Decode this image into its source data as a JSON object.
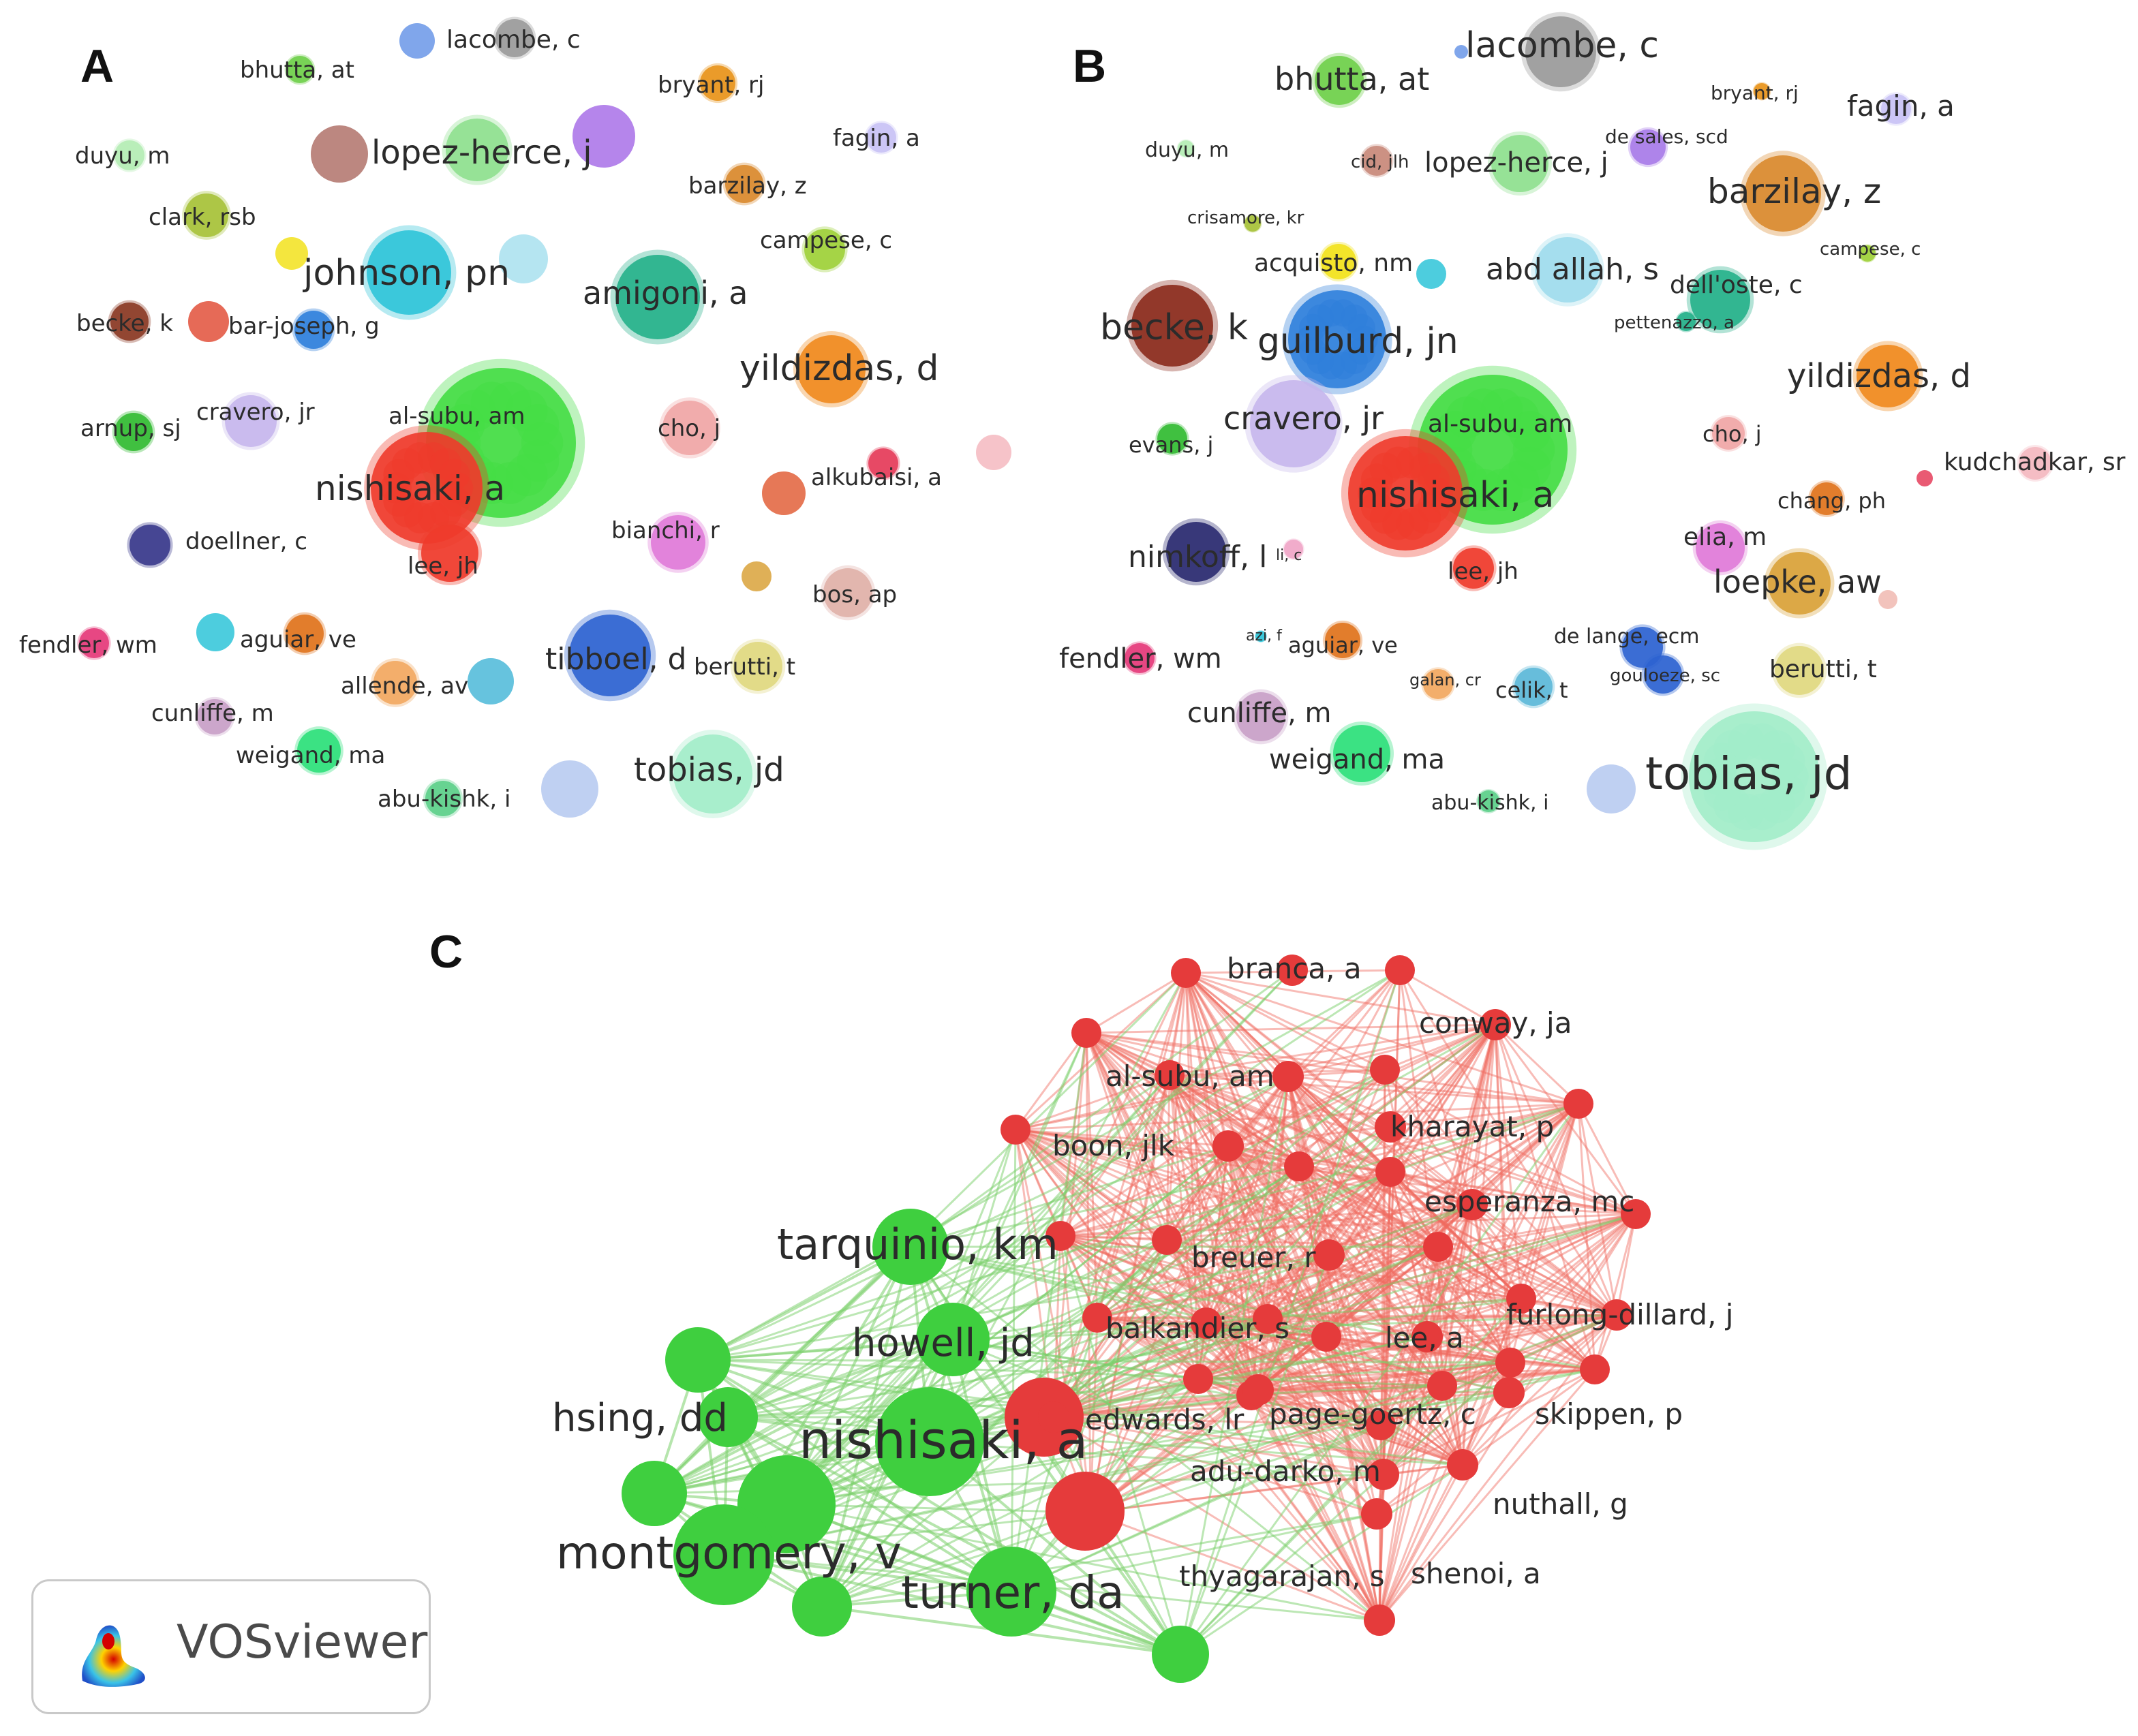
{
  "colors": {
    "panel_c_red": "#ef6a60",
    "panel_c_red_node": "#e53b3b",
    "panel_c_green": "#7ad06a",
    "panel_c_green_node": "#3fcf3f"
  },
  "panels": {
    "A": {
      "letter": "A",
      "nodes": [
        {
          "label": "lacombe, c",
          "color": "#9a9a9a"
        },
        {
          "label": "bhutta, at",
          "color": "#6fcf4a"
        },
        {
          "label": "bryant, rj",
          "color": "#e8941c"
        },
        {
          "label": "duyu, m",
          "color": "#b4ecb4"
        },
        {
          "label": "lopez-herce, j",
          "color": "#8fe08f"
        },
        {
          "label": "fagin, a",
          "color": "#c9c2f5"
        },
        {
          "label": "barzilay, z",
          "color": "#d98a2e"
        },
        {
          "label": "clark, rsb",
          "color": "#a7c23a"
        },
        {
          "label": "campese, c",
          "color": "#9fd03a"
        },
        {
          "label": "johnson, pn",
          "color": "#2ec4d8"
        },
        {
          "label": "amigoni, a",
          "color": "#24b08a"
        },
        {
          "label": "becke, k",
          "color": "#8b3a24"
        },
        {
          "label": "bar-joseph, g",
          "color": "#2f7fdb"
        },
        {
          "label": "yildizdas, d",
          "color": "#ef8a1e"
        },
        {
          "label": "arnup, sj",
          "color": "#33bb33"
        },
        {
          "label": "cravero, jr",
          "color": "#c6b6ec"
        },
        {
          "label": "al-subu, am",
          "color": "#44dd44"
        },
        {
          "label": "cho, j",
          "color": "#f0a6a6"
        },
        {
          "label": "nishisaki, a",
          "color": "#ee3b2b"
        },
        {
          "label": "alkubaisi, a",
          "color": "#e53d5a"
        },
        {
          "label": "doellner, c",
          "color": "#3a3a8c"
        },
        {
          "label": "bianchi, r",
          "color": "#e07ad8"
        },
        {
          "label": "lee, jh",
          "color": "#ee3b2b"
        },
        {
          "label": "bos, ap",
          "color": "#e0b0a8"
        },
        {
          "label": "fendler, wm",
          "color": "#e63b7a"
        },
        {
          "label": "aguiar, ve",
          "color": "#e0741e"
        },
        {
          "label": "tibboel, d",
          "color": "#2d63d0"
        },
        {
          "label": "allende, av",
          "color": "#f2a860"
        },
        {
          "label": "berutti, t",
          "color": "#e0d880"
        },
        {
          "label": "cunliffe, m",
          "color": "#c9a0c8"
        },
        {
          "label": "weigand, ma",
          "color": "#2ee07a"
        },
        {
          "label": "tobias, jd",
          "color": "#a2ecc9"
        },
        {
          "label": "abu-kishk, i",
          "color": "#5ccf8a"
        }
      ]
    },
    "B": {
      "letter": "B",
      "nodes": [
        {
          "label": "lacombe, c",
          "color": "#9a9a9a"
        },
        {
          "label": "bhutta, at",
          "color": "#6fcf4a"
        },
        {
          "label": "bryant, rj",
          "color": "#e8941c"
        },
        {
          "label": "fagin, a",
          "color": "#c9c2f5"
        },
        {
          "label": "duyu, m",
          "color": "#b4ecb4"
        },
        {
          "label": "cid, jlh",
          "color": "#c98a7a"
        },
        {
          "label": "lopez-herce, j",
          "color": "#8fe08f"
        },
        {
          "label": "de sales, scd",
          "color": "#a87be8"
        },
        {
          "label": "barzilay, z",
          "color": "#d98a2e"
        },
        {
          "label": "crisamore, kr",
          "color": "#a7c23a"
        },
        {
          "label": "campese, c",
          "color": "#9fd03a"
        },
        {
          "label": "acquisto, nm",
          "color": "#f2e21c"
        },
        {
          "label": "abd allah, s",
          "color": "#9edcec"
        },
        {
          "label": "dell'oste, c",
          "color": "#24b08a"
        },
        {
          "label": "pettenazzo, a",
          "color": "#24b08a"
        },
        {
          "label": "becke, k",
          "color": "#8b2a1c"
        },
        {
          "label": "guilburd, jn",
          "color": "#2f7fdb"
        },
        {
          "label": "yildizdas, d",
          "color": "#ef8a1e"
        },
        {
          "label": "cravero, jr",
          "color": "#c6b6ec"
        },
        {
          "label": "al-subu, am",
          "color": "#44dd44"
        },
        {
          "label": "evans, j",
          "color": "#33bb33"
        },
        {
          "label": "cho, j",
          "color": "#f0a6a6"
        },
        {
          "label": "kudchadkar, sr",
          "color": "#f4b8c0"
        },
        {
          "label": "nishisaki, a",
          "color": "#ee3b2b"
        },
        {
          "label": "chang, ph",
          "color": "#e0741e"
        },
        {
          "label": "nimkoff, l",
          "color": "#2a2a70"
        },
        {
          "label": "li, c",
          "color": "#f0a6c8"
        },
        {
          "label": "lee, jh",
          "color": "#ee3b2b"
        },
        {
          "label": "elia, m",
          "color": "#e07ad8"
        },
        {
          "label": "loepke, aw",
          "color": "#d9a23a"
        },
        {
          "label": "azi, f",
          "color": "#2ec4d8"
        },
        {
          "label": "aguiar, ve",
          "color": "#e0741e"
        },
        {
          "label": "de lange, ecm",
          "color": "#2d63d0"
        },
        {
          "label": "fendler, wm",
          "color": "#e63b7a"
        },
        {
          "label": "galan, cr",
          "color": "#f2a860"
        },
        {
          "label": "celik, t",
          "color": "#5cb8d8"
        },
        {
          "label": "gouloeze, sc",
          "color": "#2d63d0"
        },
        {
          "label": "berutti, t",
          "color": "#e0d880"
        },
        {
          "label": "cunliffe, m",
          "color": "#c9a0c8"
        },
        {
          "label": "weigand, ma",
          "color": "#2ee07a"
        },
        {
          "label": "abu-kishk, i",
          "color": "#5ccf8a"
        },
        {
          "label": "tobias, jd",
          "color": "#a2ecc9"
        }
      ]
    },
    "C": {
      "letter": "C",
      "red_nodes": [
        "branca, a",
        "conway, ja",
        "al-subu, am",
        "kharayat, p",
        "boon, jlk",
        "esperanza, mc",
        "breuer, r",
        "furlong-dillard, j",
        "balkandier, s",
        "lee, a",
        "edwards, lr",
        "page-goertz, c",
        "skippen, p",
        "adu-darko, m",
        "nuthall, g",
        "thyagarajan, s",
        "shenoi, a"
      ],
      "green_nodes": [
        "tarquinio, km",
        "howell, jd",
        "hsing, dd",
        "nishisaki, a",
        "montgomery, v",
        "turner, da"
      ]
    }
  },
  "logo": {
    "text": "VOSviewer"
  }
}
